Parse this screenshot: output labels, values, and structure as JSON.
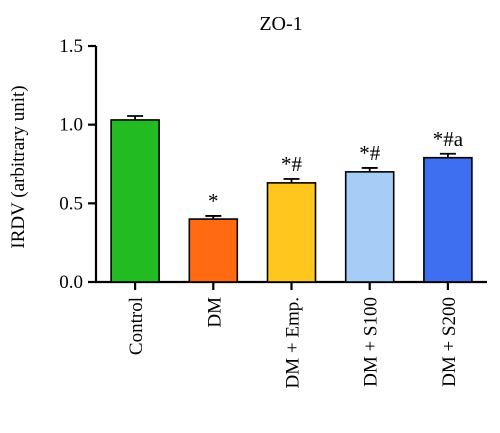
{
  "chart_data": {
    "type": "bar",
    "title": "ZO-1",
    "xlabel": "",
    "ylabel": "IRDV (arbitrary unit)",
    "ylim": [
      0,
      1.5
    ],
    "yticks": [
      0.0,
      0.5,
      1.0,
      1.5
    ],
    "ytick_labels": [
      "0.0",
      "0.5",
      "1.0",
      "1.5"
    ],
    "categories": [
      "Control",
      "DM",
      "DM + Emp.",
      "DM + S100",
      "DM + S200"
    ],
    "values": [
      1.03,
      0.4,
      0.63,
      0.7,
      0.79
    ],
    "errors": [
      0.025,
      0.02,
      0.025,
      0.025,
      0.025
    ],
    "colors": [
      "#22bb22",
      "#ff6a13",
      "#ffc61e",
      "#a6cdf5",
      "#3d6ff0"
    ],
    "annotations": [
      "",
      "*",
      "*#",
      "*#",
      "*#a"
    ],
    "grid": false,
    "legend": "none"
  }
}
